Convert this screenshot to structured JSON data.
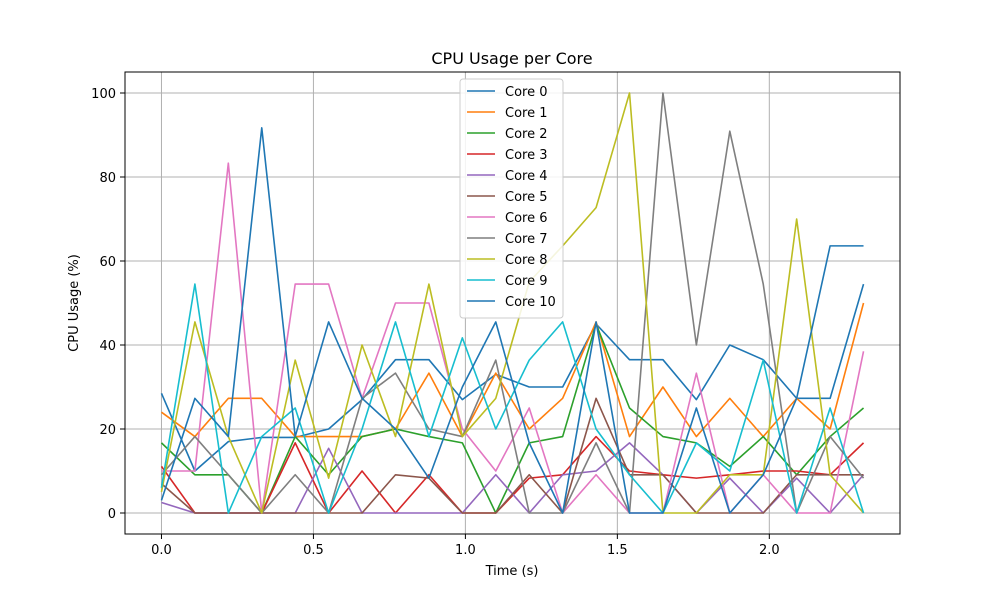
{
  "chart_data": {
    "type": "line",
    "title": "CPU Usage per Core",
    "xlabel": "Time (s)",
    "ylabel": "CPU Usage (%)",
    "xlim": [
      -0.12,
      2.43
    ],
    "ylim": [
      -5,
      105
    ],
    "xticks": [
      0.0,
      0.5,
      1.0,
      1.5,
      2.0
    ],
    "xtick_labels": [
      "0.0",
      "0.5",
      "1.0",
      "1.5",
      "2.0"
    ],
    "yticks": [
      0,
      20,
      40,
      60,
      80,
      100
    ],
    "ytick_labels": [
      "0",
      "20",
      "40",
      "60",
      "80",
      "100"
    ],
    "grid": true,
    "legend_position": "top-center",
    "x": [
      0.0,
      0.11,
      0.22,
      0.33,
      0.44,
      0.55,
      0.66,
      0.77,
      0.88,
      0.99,
      1.1,
      1.21,
      1.32,
      1.43,
      1.54,
      1.65,
      1.76,
      1.87,
      1.98,
      2.09,
      2.2,
      2.31
    ],
    "series": [
      {
        "name": "Core 0",
        "color": "#1f77b4",
        "values": [
          28.5,
          10,
          17,
          18,
          18,
          20,
          27,
          36.5,
          36.5,
          27,
          33,
          30,
          30,
          45,
          36.5,
          36.5,
          27,
          40,
          36.5,
          27.3,
          27.3,
          54.5
        ]
      },
      {
        "name": "Core 1",
        "color": "#ff7f0e",
        "values": [
          24,
          18.2,
          27.3,
          27.3,
          18.2,
          18.2,
          18.2,
          20,
          33.3,
          18.2,
          33.3,
          20,
          27.3,
          45.5,
          18.2,
          30,
          18.2,
          27.3,
          18.2,
          27.3,
          20,
          50
        ]
      },
      {
        "name": "Core 2",
        "color": "#2ca02c",
        "values": [
          16.7,
          9.1,
          9.1,
          0,
          18.2,
          9.1,
          18.2,
          20,
          18.2,
          16.7,
          0,
          16.7,
          18.2,
          45,
          25,
          18.2,
          16.7,
          11.1,
          18.2,
          9.1,
          18.2,
          25
        ]
      },
      {
        "name": "Core 3",
        "color": "#d62728",
        "values": [
          11.1,
          0,
          0,
          0,
          16.7,
          0,
          10,
          0,
          9.1,
          0,
          0,
          8.3,
          9.1,
          18.2,
          10,
          9.1,
          8.3,
          9.1,
          10,
          10,
          9.1,
          16.7
        ]
      },
      {
        "name": "Core 4",
        "color": "#9467bd",
        "values": [
          2.5,
          0,
          0,
          0,
          0,
          15.4,
          0,
          0,
          0,
          0,
          9.1,
          0,
          9.1,
          10,
          16.7,
          9.1,
          0,
          8.3,
          0,
          8.3,
          0,
          9.1
        ]
      },
      {
        "name": "Core 5",
        "color": "#8c564b",
        "values": [
          7,
          0,
          0,
          0,
          0,
          0,
          0,
          9.1,
          8.3,
          0,
          0,
          9.1,
          0,
          27.3,
          9.1,
          9.1,
          0,
          0,
          0,
          9.1,
          9.1,
          9.1
        ]
      },
      {
        "name": "Core 6",
        "color": "#e377c2",
        "values": [
          10,
          10,
          83.3,
          0,
          54.5,
          54.5,
          27.3,
          50,
          50,
          20,
          10,
          25,
          0,
          9.1,
          0,
          0,
          33.3,
          0,
          9.1,
          0,
          0,
          38.5
        ]
      },
      {
        "name": "Core 7",
        "color": "#7f7f7f",
        "values": [
          9.1,
          18.2,
          9.1,
          0,
          9.1,
          0,
          27.3,
          33.3,
          20,
          18.2,
          36.4,
          0,
          0,
          16.7,
          0,
          100,
          40,
          90.9,
          54.5,
          0,
          18.2,
          8.3
        ]
      },
      {
        "name": "Core 8",
        "color": "#bcbd22",
        "values": [
          5,
          45.5,
          18.2,
          0,
          36.4,
          8.3,
          40,
          18.2,
          54.5,
          18.2,
          27.3,
          55,
          63.6,
          72.7,
          100,
          0,
          0,
          9.1,
          9.1,
          70,
          9.1,
          0
        ]
      },
      {
        "name": "Core 9",
        "color": "#17becf",
        "values": [
          6,
          54.5,
          0,
          18.2,
          25,
          0,
          20,
          45.5,
          18.2,
          41.7,
          20,
          36.4,
          45.5,
          20,
          9.1,
          0,
          16.7,
          10,
          36.4,
          0,
          25,
          0
        ]
      },
      {
        "name": "Core 10",
        "color": "#1f77b4",
        "values": [
          3,
          27.3,
          18.2,
          91.7,
          18.2,
          45.5,
          27.3,
          20,
          8.3,
          30,
          45.5,
          16.7,
          0,
          45.5,
          0,
          0,
          25,
          0,
          9.1,
          27.3,
          63.6,
          63.6
        ]
      }
    ]
  }
}
